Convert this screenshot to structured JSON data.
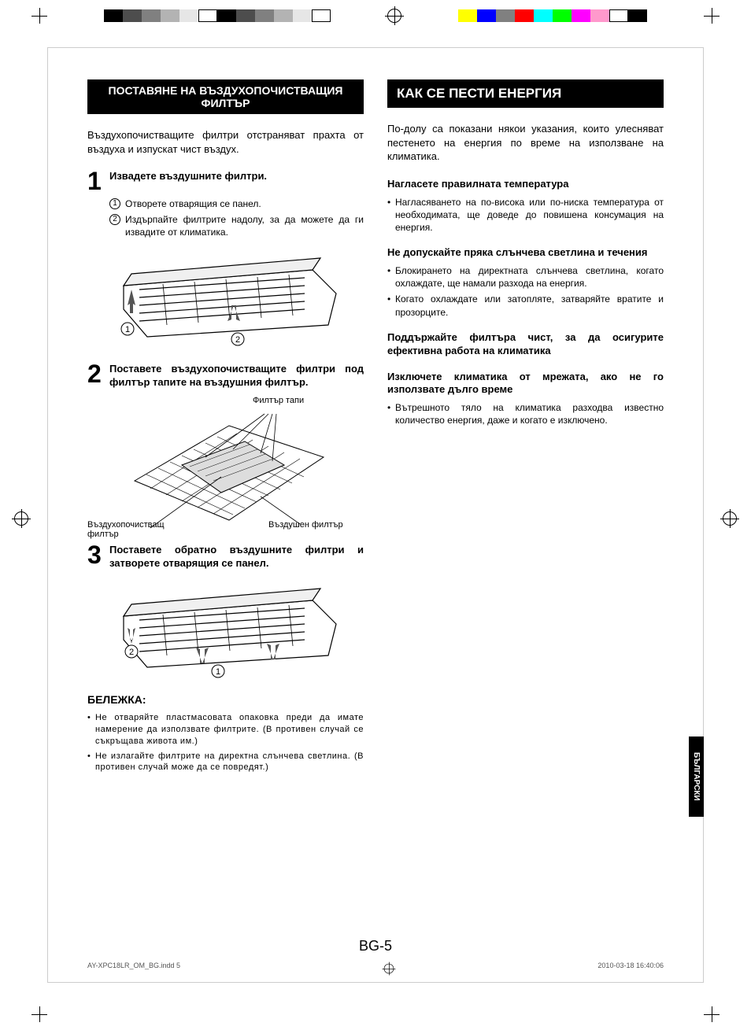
{
  "colorbar_left": [
    "#000000",
    "#4d4d4d",
    "#808080",
    "#b3b3b3",
    "#e6e6e6",
    "#ffffff",
    "#000000",
    "#4d4d4d",
    "#808080",
    "#b3b3b3",
    "#e6e6e6",
    "#ffffff"
  ],
  "colorbar_right": [
    "#ffff00",
    "#0000ff",
    "#808080",
    "#ff0000",
    "#00ffff",
    "#00ff00",
    "#ff00ff",
    "#ff99cc",
    "#ffffff",
    "#000000"
  ],
  "left": {
    "header": "ПОСТАВЯНЕ НА ВЪЗДУХОПОЧИСТВАЩИЯ ФИЛТЪР",
    "intro": "Въздухопочистващите филтри отстраняват прахта от въздуха и изпускат чист въздух.",
    "step1_num": "1",
    "step1_title": "Извадете въздушните филтри.",
    "step1_sub1_num": "1",
    "step1_sub1": "Отворете отварящия се панел.",
    "step1_sub2_num": "2",
    "step1_sub2": "Издърпайте филтрите надолу, за да можете да ги извадите от климатика.",
    "step2_num": "2",
    "step2_title": "Поставете въздухопочистващите филтри под филтър тапите на въздушния филтър.",
    "diagram2_label_top": "Филтър тапи",
    "diagram2_label_left": "Въздухопочистващ филтър",
    "diagram2_label_right": "Въздушен филтър",
    "step3_num": "3",
    "step3_title": "Поставете обратно въздушните филтри и затворете отварящия се панел.",
    "note_heading": "БЕЛЕЖКА:",
    "note1": "Не отваряйте пластмасовата опаковка преди да имате намерение да използвате филтрите. (В противен случай се съкръщава живота им.)",
    "note2": "Не излагайте филтрите на директна слънчева светлина. (В противен случай може да се повредят.)"
  },
  "right": {
    "header": "КАК СЕ ПЕСТИ ЕНЕРГИЯ",
    "intro": "По-долу са показани някои указания, които улесняват пестенето на енергия по време на използване на климатика.",
    "sub1_title": "Нагласете правилната температура",
    "sub1_bullet1": "Нагласяването на по-висока или по-ниска температура от необходимата, ще доведе до повишена консумация на енергия.",
    "sub2_title": "Не допускайте пряка слънчева светлина и течения",
    "sub2_bullet1": "Блокирането на директната слънчева светлина, когато охлаждате, ще намали разхода на енергия.",
    "sub2_bullet2": "Когато охлаждате или затопляте, затваряйте вратите и прозорците.",
    "sub3_title": "Поддържайте филтъра чист, за да осигурите ефективна работа на климатика",
    "sub4_title": "Изключете климатика от мрежата, ако не го използвате дълго време",
    "sub4_bullet1": "Вътрешното тяло на климатика разходва известно количество енергия, даже и когато е изключено."
  },
  "page_number": "BG-5",
  "lang_tab": "БЪЛГАРСКИ",
  "footer_left": "AY-XPC18LR_OM_BG.indd   5",
  "footer_right": "2010-03-18   16:40:06"
}
